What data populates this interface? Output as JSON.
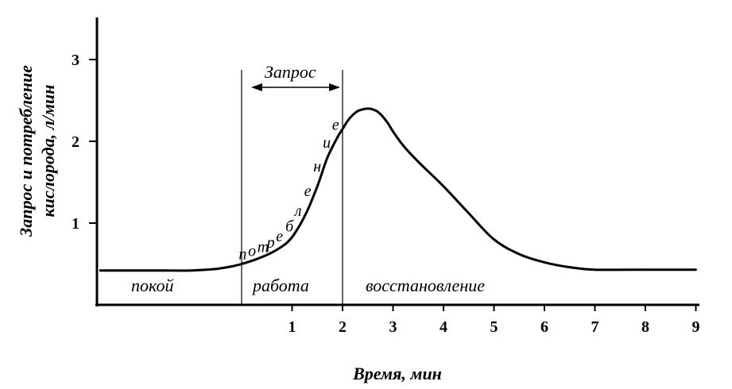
{
  "chart_data": {
    "type": "line",
    "title": "",
    "xlabel": "Время, мин",
    "ylabel_line1": "Запрос и потребление",
    "ylabel_line2": "кислорода, л/мин",
    "xlim": [
      -2.8,
      9
    ],
    "ylim": [
      0,
      3.5
    ],
    "x_ticks": [
      1,
      2,
      3,
      4,
      5,
      6,
      7,
      8,
      9
    ],
    "y_ticks": [
      1,
      2,
      3
    ],
    "grid": false,
    "series": [
      {
        "x": [
          -2.8,
          -1.5,
          -1.0,
          -0.5,
          -0.2,
          0.0,
          0.3,
          0.6,
          0.9,
          1.1,
          1.3,
          1.5,
          1.7,
          1.9,
          2.0,
          2.1,
          2.2,
          2.3,
          2.4,
          2.5,
          2.6,
          2.7,
          2.8,
          2.9,
          3.0,
          3.2,
          3.5,
          4.0,
          4.5,
          5.0,
          5.5,
          6.0,
          6.5,
          7.0,
          8.0,
          9.0
        ],
        "y": [
          0.42,
          0.42,
          0.42,
          0.44,
          0.47,
          0.5,
          0.56,
          0.64,
          0.76,
          0.92,
          1.15,
          1.45,
          1.8,
          2.05,
          2.15,
          2.25,
          2.32,
          2.37,
          2.39,
          2.4,
          2.39,
          2.36,
          2.3,
          2.22,
          2.12,
          1.95,
          1.75,
          1.45,
          1.12,
          0.8,
          0.62,
          0.52,
          0.46,
          0.43,
          0.43,
          0.43
        ]
      }
    ],
    "phase_boundaries_x": [
      0,
      2
    ],
    "phases": [
      "покой",
      "работа",
      "восстановление"
    ],
    "annotation_request": "Запрос",
    "curve_annotation": "потребление"
  }
}
